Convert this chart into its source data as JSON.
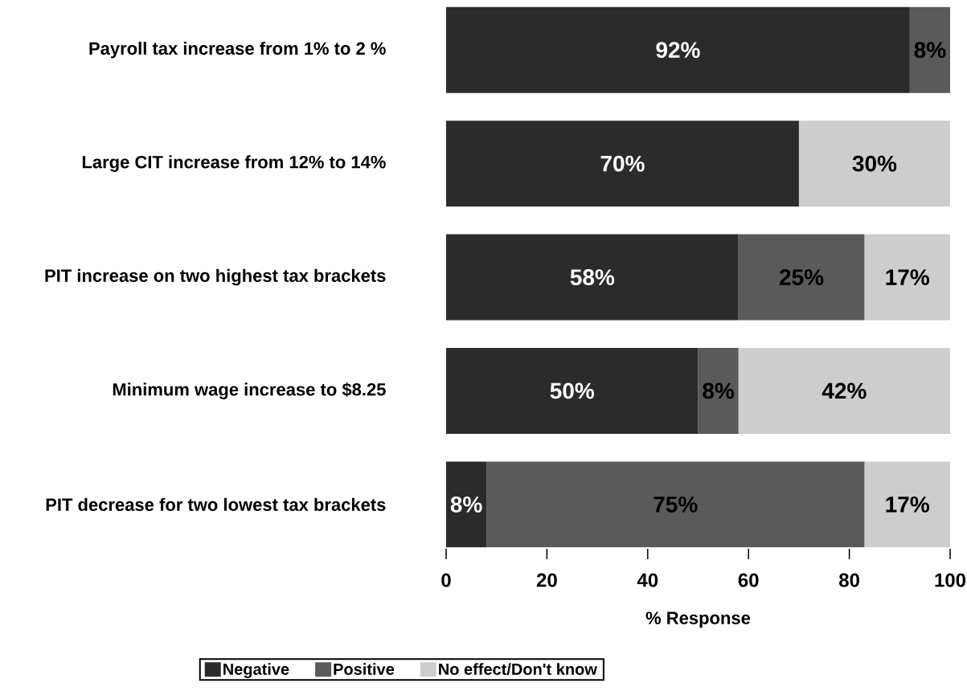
{
  "chart_data": {
    "type": "bar",
    "orientation": "horizontal",
    "stacked": true,
    "categories": [
      "Payroll tax increase from 1% to 2 %",
      "Large CIT increase from 12% to 14%",
      "PIT increase on two highest tax brackets",
      "Minimum wage increase to $8.25",
      "PIT decrease for two lowest tax brackets"
    ],
    "series": [
      {
        "name": "Negative",
        "color": "#2b2b2b",
        "values": [
          92,
          70,
          58,
          50,
          8
        ],
        "value_labels": [
          "92%",
          "70%",
          "58%",
          "50%",
          "8%"
        ]
      },
      {
        "name": "Positive",
        "color": "#5a5a5a",
        "values": [
          8,
          0,
          25,
          8,
          75
        ],
        "value_labels": [
          "8%",
          null,
          "25%",
          "8%",
          "75%"
        ]
      },
      {
        "name": "No effect/Don't know",
        "color": "#cdcdcd",
        "values": [
          0,
          30,
          17,
          42,
          17
        ],
        "value_labels": [
          null,
          "30%",
          "17%",
          "42%",
          "17%"
        ]
      }
    ],
    "xlabel": "% Response",
    "xlim": [
      0,
      100
    ],
    "xticks": [
      0,
      20,
      40,
      60,
      80,
      100
    ],
    "legend": "bottom"
  }
}
